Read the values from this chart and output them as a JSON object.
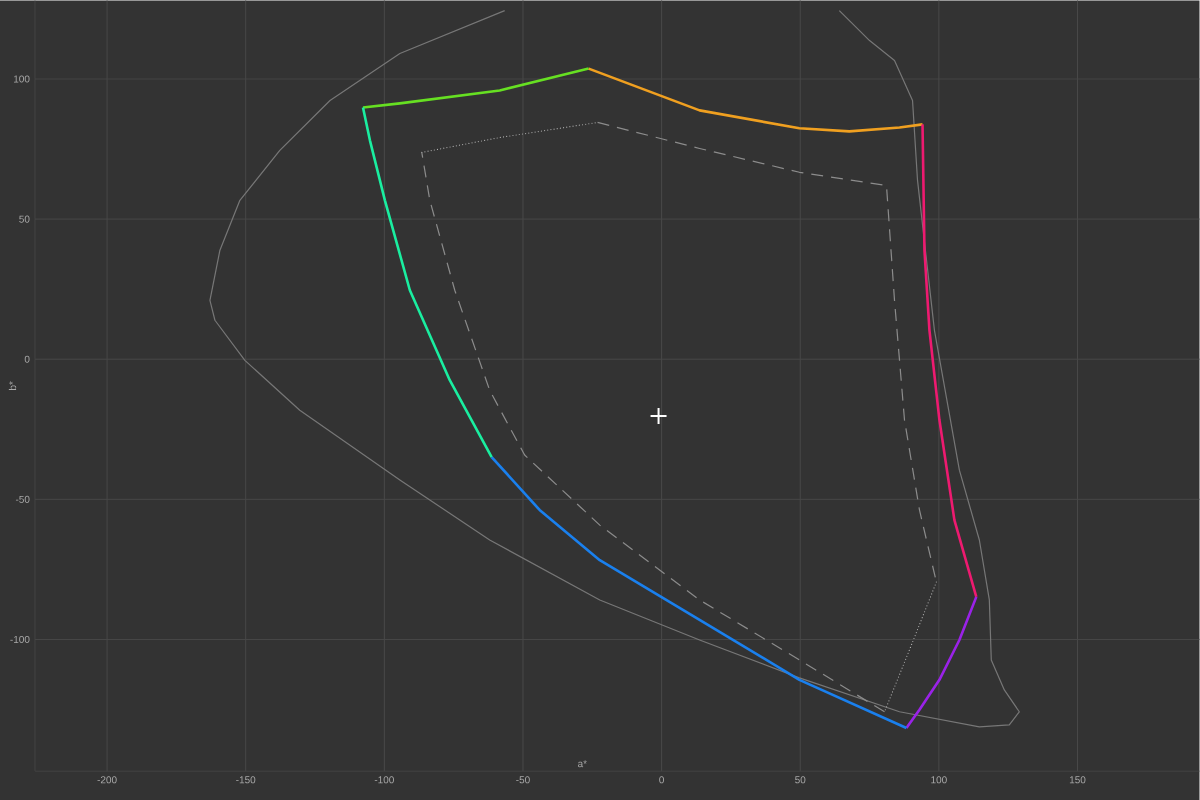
{
  "chart_data": {
    "type": "line",
    "xlabel": "a*",
    "ylabel": "b*",
    "xlim": [
      -226,
      194
    ],
    "ylim": [
      -147,
      128
    ],
    "xticks": [
      -200,
      -150,
      -100,
      -50,
      0,
      50,
      100,
      150
    ],
    "yticks": [
      -100,
      -50,
      0,
      50,
      100
    ],
    "grid": true,
    "line_style": "solid",
    "series": [
      {
        "color": "#777777",
        "x": [
          -56.6,
          -94.4,
          -119.6,
          -137.7,
          -152.1,
          -159.3,
          -162.9,
          -161.1,
          -150.3,
          -130.5,
          -94.4,
          -62,
          -22.3,
          13.7,
          49.7,
          85.8,
          114.6,
          125.4,
          129,
          123.6,
          118.9,
          118.2,
          114.6,
          107.4,
          98.4,
          92.3,
          90.5,
          84,
          75,
          64.1
        ],
        "values": [
          124.4,
          109.1,
          92.3,
          74.5,
          56.7,
          38.9,
          21,
          13.9,
          -0.4,
          -18.2,
          -43.1,
          -64.5,
          -85.9,
          -100.2,
          -113.7,
          -125.8,
          -131.2,
          -130.5,
          -125.8,
          -118,
          -107.3,
          -85.9,
          -64.5,
          -39.6,
          10.3,
          63.8,
          92.3,
          106.6,
          113.7,
          124.4
        ]
      },
      {
        "color": "#b0b0b0",
        "line_style": "dotted",
        "x": [
          -86.5,
          -58.4,
          -23.1
        ],
        "values": [
          73.8,
          79.1,
          84.5
        ]
      },
      {
        "color": "#8c8c8c",
        "line_style": "dashed",
        "x": [
          -23.1,
          13.7,
          49.7,
          81.1,
          84,
          87.6,
          93,
          99.1
        ],
        "values": [
          84.5,
          75.2,
          66.7,
          62,
          21,
          -21.7,
          -53.8,
          -79.5
        ]
      },
      {
        "color": "#b0b0b0",
        "line_style": "dotted",
        "x": [
          99.1,
          89.4,
          80.4
        ],
        "values": [
          -79.5,
          -103.7,
          -125.8
        ]
      },
      {
        "color": "#8c8c8c",
        "line_style": "dashed",
        "x": [
          80.4,
          49.7,
          13.7,
          -22.3,
          -49.4,
          -62,
          -74.6,
          -83.6,
          -86.5
        ],
        "values": [
          -125.8,
          -107.3,
          -85.9,
          -59.2,
          -34.2,
          -11.1,
          24.6,
          56.7,
          73.8
        ]
      },
      {
        "color": "#66e022",
        "x": [
          -107.7,
          -94.4,
          -58.4,
          -26.3
        ],
        "values": [
          89.8,
          91.3,
          95.9,
          103.7
        ]
      },
      {
        "color": "#f0a020",
        "x": [
          -26.3,
          13.7,
          49.7,
          67.7,
          85.8,
          94.1
        ],
        "values": [
          103.7,
          88.8,
          82.4,
          81.3,
          82.7,
          83.8
        ]
      },
      {
        "color": "#ee1a70",
        "x": [
          94.1,
          94.8,
          96.6,
          100.2,
          105.6,
          113.5
        ],
        "values": [
          83.8,
          38.9,
          10.3,
          -21.7,
          -57.4,
          -84.8
        ]
      },
      {
        "color": "#9a22e8",
        "x": [
          113.5,
          107.4,
          100.2,
          93,
          88.3
        ],
        "values": [
          -84.8,
          -100.2,
          -114.4,
          -125.1,
          -131.6
        ]
      },
      {
        "color": "#1a80ee",
        "x": [
          88.3,
          49.7,
          13.7,
          -22.3,
          -44,
          -61.3
        ],
        "values": [
          -131.6,
          -114.4,
          -93,
          -71.7,
          -53.8,
          -34.9
        ]
      },
      {
        "color": "#1aeea0",
        "x": [
          -61.3,
          -76.4,
          -90.8,
          -99.8,
          -105.2,
          -107.7
        ],
        "values": [
          -34.9,
          -7.5,
          24.6,
          56.7,
          78.1,
          89.8
        ]
      },
      {
        "type": "scatter",
        "marker": "cross",
        "color": "#ffffff",
        "x": [
          -1.1
        ],
        "values": [
          -20.3
        ]
      }
    ]
  }
}
